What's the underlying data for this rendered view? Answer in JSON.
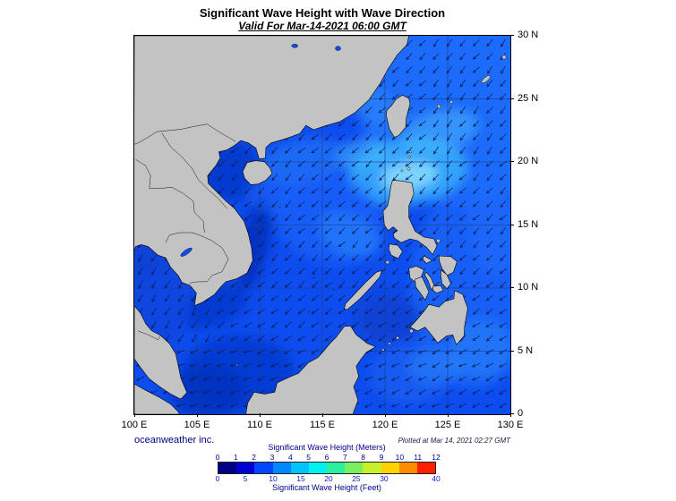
{
  "title": "Significant Wave Height with Wave Direction",
  "subtitle": "Valid For Mar-14-2021 06:00 GMT",
  "credit": "oceanweather inc.",
  "plotted": "Plotted at Mar 14, 2021 02:27 GMT",
  "map": {
    "x_ticks": [
      "100 E",
      "105 E",
      "110 E",
      "115 E",
      "120 E",
      "125 E",
      "130 E"
    ],
    "y_ticks": [
      "30 N",
      "25 N",
      "20 N",
      "15 N",
      "10 N",
      "5 N",
      "0"
    ]
  },
  "legend": {
    "meters_title": "Significant Wave Height (Meters)",
    "feet_title": "Significant Wave Height (Feet)",
    "meters_ticks": [
      "0",
      "1",
      "2",
      "3",
      "4",
      "5",
      "6",
      "7",
      "8",
      "9",
      "10",
      "11",
      "12"
    ],
    "feet_ticks": [
      "0",
      "5",
      "10",
      "15",
      "20",
      "25",
      "30",
      "40"
    ],
    "colors": [
      "#000084",
      "#0000d2",
      "#0045ff",
      "#0087ff",
      "#00c3ff",
      "#00f0f0",
      "#28f0a0",
      "#78f060",
      "#c8f028",
      "#ffd200",
      "#ff8c00",
      "#ff2000"
    ],
    "ocean_base": "#0d4cee",
    "land_color": "#c3c3c3"
  }
}
